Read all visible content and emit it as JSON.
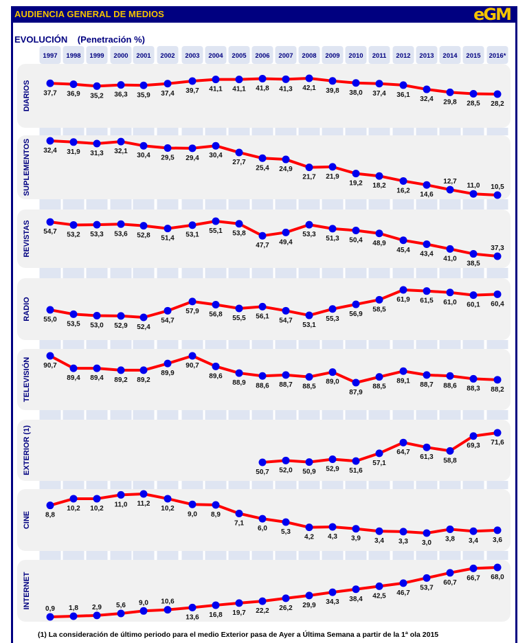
{
  "header": {
    "title": "AUDIENCIA GENERAL DE MEDIOS",
    "logo": "eGM"
  },
  "subtitle": {
    "main": "EVOLUCIÓN",
    "unit": "(Penetración %)"
  },
  "footnote": "(1) La consideración de último periodo  para el medio Exterior pasa de Ayer a Última Semana a partir de la 1ª ola 2015",
  "colors": {
    "header_bg": "#000080",
    "header_text": "#f5c400",
    "line": "#ff0000",
    "marker": "#0000ee",
    "panel_bg": "#f1f1f1",
    "column_bg": "#dfe5f2",
    "label_text": "#000080"
  },
  "chart_data": {
    "type": "line",
    "title": "EVOLUCIÓN (Penetración %)",
    "xlabel": "",
    "ylabel": "Penetración %",
    "grid": false,
    "legend": "none",
    "categories": [
      "1997",
      "1998",
      "1999",
      "2000",
      "2001",
      "2002",
      "2003",
      "2004",
      "2005",
      "2006",
      "2007",
      "2008",
      "2009",
      "2010",
      "2011",
      "2012",
      "2013",
      "2014",
      "2015",
      "2016*"
    ],
    "series": [
      {
        "name": "DIARIOS",
        "values": [
          37.7,
          36.9,
          35.2,
          36.3,
          35.9,
          37.4,
          39.7,
          41.1,
          41.1,
          41.8,
          41.3,
          42.1,
          39.8,
          38.0,
          37.4,
          36.1,
          32.4,
          29.8,
          28.5,
          28.2
        ],
        "labels": [
          "37,7",
          "36,9",
          "35,2",
          "36,3",
          "35,9",
          "37,4",
          "39,7",
          "41,1",
          "41,1",
          "41,8",
          "41,3",
          "42,1",
          "39,8",
          "38,0",
          "37,4",
          "36,1",
          "32,4",
          "29,8",
          "28,5",
          "28,2"
        ]
      },
      {
        "name": "SUPLEMENTOS",
        "values": [
          32.4,
          31.9,
          31.3,
          32.1,
          30.4,
          29.5,
          29.4,
          30.4,
          27.7,
          25.4,
          24.9,
          21.7,
          21.9,
          19.2,
          18.2,
          16.2,
          14.6,
          12.7,
          11.0,
          10.5
        ],
        "labels": [
          "32,4",
          "31,9",
          "31,3",
          "32,1",
          "30,4",
          "29,5",
          "29,4",
          "30,4",
          "27,7",
          "25,4",
          "24,9",
          "21,7",
          "21,9",
          "19,2",
          "18,2",
          "16,2",
          "14,6",
          "12,7",
          "11,0",
          "10,5"
        ]
      },
      {
        "name": "REVISTAS",
        "values": [
          54.7,
          53.2,
          53.3,
          53.6,
          52.8,
          51.4,
          53.1,
          55.1,
          53.8,
          47.7,
          49.4,
          53.3,
          51.3,
          50.4,
          48.9,
          45.4,
          43.4,
          41.0,
          38.5,
          37.3
        ],
        "labels": [
          "54,7",
          "53,2",
          "53,3",
          "53,6",
          "52,8",
          "51,4",
          "53,1",
          "55,1",
          "53,8",
          "47,7",
          "49,4",
          "53,3",
          "51,3",
          "50,4",
          "48,9",
          "45,4",
          "43,4",
          "41,0",
          "38,5",
          "37,3"
        ]
      },
      {
        "name": "RADIO",
        "values": [
          55.0,
          53.5,
          53.0,
          52.9,
          52.4,
          54.7,
          57.9,
          56.8,
          55.5,
          56.1,
          54.7,
          53.1,
          55.3,
          56.9,
          58.5,
          61.9,
          61.5,
          61.0,
          60.1,
          60.4
        ],
        "labels": [
          "55,0",
          "53,5",
          "53,0",
          "52,9",
          "52,4",
          "54,7",
          "57,9",
          "56,8",
          "55,5",
          "56,1",
          "54,7",
          "53,1",
          "55,3",
          "56,9",
          "58,5",
          "61,9",
          "61,5",
          "61,0",
          "60,1",
          "60,4"
        ]
      },
      {
        "name": "TELEVISIÓN",
        "values": [
          90.7,
          89.4,
          89.4,
          89.2,
          89.2,
          89.9,
          90.7,
          89.6,
          88.9,
          88.6,
          88.7,
          88.5,
          89.0,
          87.9,
          88.5,
          89.1,
          88.7,
          88.6,
          88.3,
          88.2
        ],
        "labels": [
          "90,7",
          "89,4",
          "89,4",
          "89,2",
          "89,2",
          "89,9",
          "90,7",
          "89,6",
          "88,9",
          "88,6",
          "88,7",
          "88,5",
          "89,0",
          "87,9",
          "88,5",
          "89,1",
          "88,7",
          "88,6",
          "88,3",
          "88,2"
        ]
      },
      {
        "name": "EXTERIOR (1)",
        "values": [
          null,
          null,
          null,
          null,
          null,
          null,
          null,
          null,
          null,
          50.7,
          52.0,
          50.9,
          52.9,
          51.6,
          57.1,
          64.7,
          61.3,
          58.8,
          69.3,
          71.6
        ],
        "labels": [
          null,
          null,
          null,
          null,
          null,
          null,
          null,
          null,
          null,
          "50,7",
          "52,0",
          "50,9",
          "52,9",
          "51,6",
          "57,1",
          "64,7",
          "61,3",
          "58,8",
          "69,3",
          "71,6"
        ]
      },
      {
        "name": "CINE",
        "values": [
          8.8,
          10.2,
          10.2,
          11.0,
          11.2,
          10.2,
          9.0,
          8.9,
          7.1,
          6.0,
          5.3,
          4.2,
          4.3,
          3.9,
          3.4,
          3.3,
          3.0,
          3.8,
          3.4,
          3.6
        ],
        "labels": [
          "8,8",
          "10,2",
          "10,2",
          "11,0",
          "11,2",
          "10,2",
          "9,0",
          "8,9",
          "7,1",
          "6,0",
          "5,3",
          "4,2",
          "4,3",
          "3,9",
          "3,4",
          "3,3",
          "3,0",
          "3,8",
          "3,4",
          "3,6"
        ]
      },
      {
        "name": "INTERNET",
        "values": [
          0.9,
          1.8,
          2.9,
          5.6,
          9.0,
          10.6,
          13.6,
          16.8,
          19.7,
          22.2,
          26.2,
          29.9,
          34.3,
          38.4,
          42.5,
          46.7,
          53.7,
          60.7,
          66.7,
          68.0
        ],
        "labels": [
          "0,9",
          "1,8",
          "2,9",
          "5,6",
          "9,0",
          "10,6",
          "13,6",
          "16,8",
          "19,7",
          "22,2",
          "26,2",
          "29,9",
          "34,3",
          "38,4",
          "42,5",
          "46,7",
          "53,7",
          "60,7",
          "66,7",
          "68,0"
        ]
      }
    ]
  }
}
